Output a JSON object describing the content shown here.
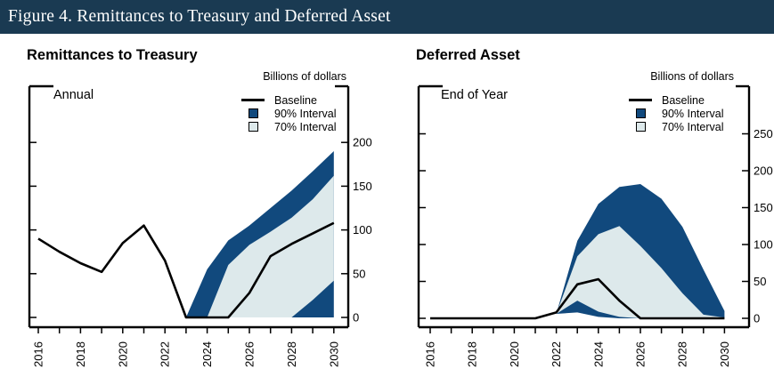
{
  "header": {
    "title": "Figure 4. Remittances to Treasury and Deferred Asset"
  },
  "panels": [
    {
      "title": "Remittances to Treasury",
      "frequency_label": "Annual",
      "unit_label": "Billions of dollars",
      "legend": [
        {
          "label": "Baseline",
          "type": "line",
          "color": "#000000"
        },
        {
          "label": "90% Interval",
          "type": "box",
          "color": "#11497d"
        },
        {
          "label": "70% Interval",
          "type": "box",
          "color": "#dde9eb"
        }
      ]
    },
    {
      "title": "Deferred Asset",
      "frequency_label": "End of Year",
      "unit_label": "Billions of dollars",
      "legend": [
        {
          "label": "Baseline",
          "type": "line",
          "color": "#000000"
        },
        {
          "label": "90% Interval",
          "type": "box",
          "color": "#11497d"
        },
        {
          "label": "70% Interval",
          "type": "box",
          "color": "#dde9eb"
        }
      ]
    }
  ],
  "chart_data": [
    {
      "type": "area",
      "title": "Remittances to Treasury",
      "subtitle": "Annual",
      "ylabel": "Billions of dollars",
      "x": [
        2016,
        2017,
        2018,
        2019,
        2020,
        2021,
        2022,
        2023,
        2024,
        2025,
        2026,
        2027,
        2028,
        2029,
        2030
      ],
      "xtick_labels": [
        "2016",
        "2018",
        "2020",
        "2022",
        "2024",
        "2026",
        "2028",
        "2030"
      ],
      "yticks": [
        0,
        50,
        100,
        150,
        200
      ],
      "ylim": [
        0,
        200
      ],
      "legend_position": "top-right-inside",
      "grid": false,
      "series": [
        {
          "name": "Baseline",
          "values": [
            90,
            75,
            62,
            52,
            85,
            105,
            65,
            0,
            0,
            0,
            28,
            70,
            84,
            96,
            108
          ]
        },
        {
          "name": "90% interval upper",
          "values": [
            null,
            null,
            null,
            null,
            null,
            null,
            null,
            0,
            55,
            88,
            105,
            125,
            145,
            167,
            190
          ]
        },
        {
          "name": "90% interval lower",
          "values": [
            null,
            null,
            null,
            null,
            null,
            null,
            null,
            0,
            0,
            0,
            0,
            0,
            0,
            0,
            0
          ]
        },
        {
          "name": "70% interval upper",
          "values": [
            null,
            null,
            null,
            null,
            null,
            null,
            null,
            null,
            0,
            60,
            83,
            98,
            114,
            135,
            162
          ]
        },
        {
          "name": "70% interval lower",
          "values": [
            null,
            null,
            null,
            null,
            null,
            null,
            null,
            null,
            0,
            0,
            0,
            0,
            0,
            20,
            42
          ]
        }
      ]
    },
    {
      "type": "area",
      "title": "Deferred Asset",
      "subtitle": "End of Year",
      "ylabel": "Billions of dollars",
      "x": [
        2016,
        2017,
        2018,
        2019,
        2020,
        2021,
        2022,
        2023,
        2024,
        2025,
        2026,
        2027,
        2028,
        2029,
        2030
      ],
      "xtick_labels": [
        "2016",
        "2018",
        "2020",
        "2022",
        "2024",
        "2026",
        "2028",
        "2030"
      ],
      "yticks": [
        0,
        50,
        100,
        150,
        200,
        250
      ],
      "ylim": [
        0,
        250
      ],
      "legend_position": "top-right-inside",
      "grid": false,
      "series": [
        {
          "name": "Baseline",
          "values": [
            0,
            0,
            0,
            0,
            0,
            0,
            8,
            46,
            53,
            24,
            0,
            0,
            0,
            0,
            0
          ]
        },
        {
          "name": "90% interval upper",
          "values": [
            null,
            null,
            null,
            null,
            null,
            null,
            6,
            105,
            155,
            178,
            182,
            162,
            124,
            66,
            10
          ]
        },
        {
          "name": "90% interval lower",
          "values": [
            null,
            null,
            null,
            null,
            null,
            null,
            6,
            8,
            2,
            0,
            0,
            0,
            0,
            0,
            0
          ]
        },
        {
          "name": "70% interval upper",
          "values": [
            null,
            null,
            null,
            null,
            null,
            null,
            6,
            84,
            114,
            125,
            98,
            68,
            34,
            5,
            1
          ]
        },
        {
          "name": "70% interval lower",
          "values": [
            null,
            null,
            null,
            null,
            null,
            null,
            6,
            24,
            9,
            2,
            0,
            0,
            0,
            0,
            0
          ]
        }
      ]
    }
  ]
}
